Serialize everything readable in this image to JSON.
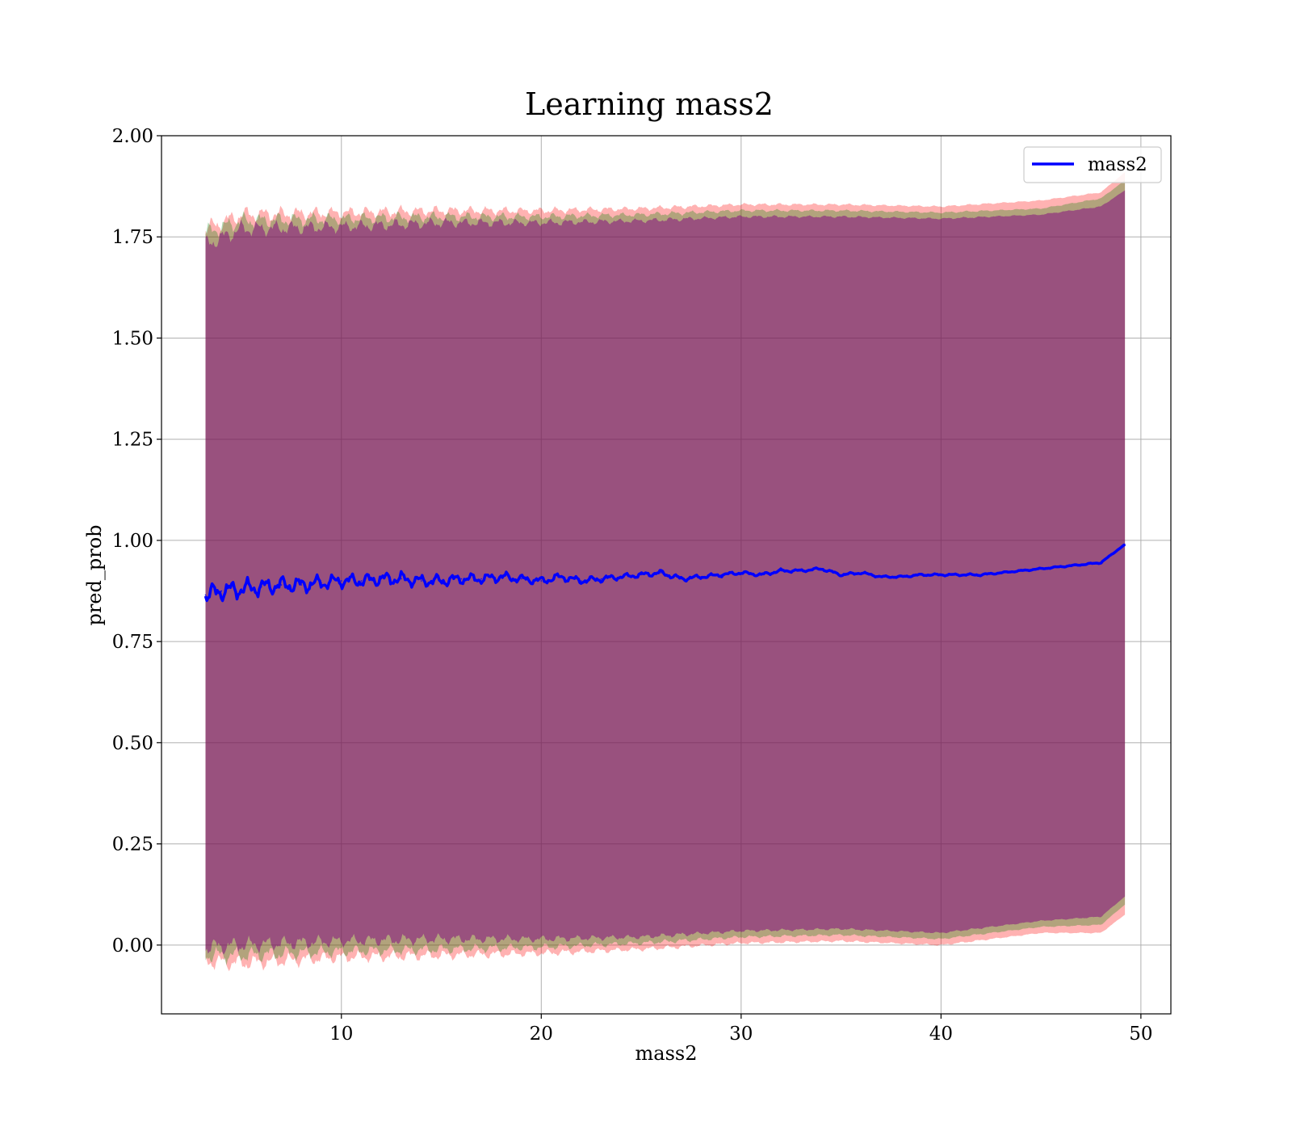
{
  "chart_data": {
    "type": "line",
    "title": "Learning mass2",
    "xlabel": "mass2",
    "ylabel": "pred_prob",
    "xlim": [
      1,
      51.5
    ],
    "ylim": [
      -0.17,
      2.0
    ],
    "xticks": [
      10,
      20,
      30,
      40,
      50
    ],
    "xtick_labels": [
      "10",
      "20",
      "30",
      "40",
      "50"
    ],
    "yticks": [
      0.0,
      0.25,
      0.5,
      0.75,
      1.0,
      1.25,
      1.5,
      1.75,
      2.0
    ],
    "ytick_labels": [
      "0.00",
      "0.25",
      "0.50",
      "0.75",
      "1.00",
      "1.25",
      "1.50",
      "1.75",
      "2.00"
    ],
    "grid": true,
    "legend_position": "top-right",
    "series": [
      {
        "name": "mass2",
        "color": "#0000ff",
        "x": [
          3.2,
          4.0,
          5.0,
          6.0,
          7.0,
          8.0,
          9.0,
          10.0,
          11.0,
          12.0,
          13.0,
          14.0,
          15.0,
          16.0,
          17.0,
          18.0,
          19.0,
          20.0,
          21.0,
          22.0,
          23.0,
          24.0,
          25.0,
          26.0,
          27.0,
          28.0,
          29.0,
          30.0,
          31.0,
          32.0,
          33.0,
          34.0,
          35.0,
          36.0,
          37.0,
          38.0,
          39.0,
          40.0,
          41.0,
          42.0,
          43.0,
          44.0,
          45.0,
          46.0,
          47.0,
          48.0,
          49.2
        ],
        "y": [
          0.865,
          0.875,
          0.88,
          0.885,
          0.89,
          0.89,
          0.895,
          0.9,
          0.9,
          0.905,
          0.905,
          0.9,
          0.9,
          0.905,
          0.905,
          0.91,
          0.905,
          0.9,
          0.91,
          0.9,
          0.905,
          0.91,
          0.915,
          0.92,
          0.905,
          0.91,
          0.915,
          0.92,
          0.915,
          0.925,
          0.925,
          0.93,
          0.915,
          0.92,
          0.91,
          0.91,
          0.915,
          0.915,
          0.915,
          0.915,
          0.92,
          0.925,
          0.93,
          0.935,
          0.94,
          0.945,
          0.99
        ],
        "noise": [
          0.03,
          0.028,
          0.028,
          0.026,
          0.025,
          0.024,
          0.022,
          0.02,
          0.02,
          0.02,
          0.02,
          0.018,
          0.018,
          0.016,
          0.015,
          0.015,
          0.012,
          0.012,
          0.012,
          0.01,
          0.01,
          0.008,
          0.008,
          0.008,
          0.008,
          0.006,
          0.006,
          0.005,
          0.005,
          0.005,
          0.004,
          0.004,
          0.004,
          0.004,
          0.003,
          0.003,
          0.003,
          0.003,
          0.003,
          0.003,
          0.002,
          0.002,
          0.002,
          0.002,
          0.002,
          0.002,
          0.0
        ]
      }
    ],
    "bands": [
      {
        "color": "#ff0000",
        "opacity": 0.3,
        "x": [
          3.2,
          5.0,
          10.0,
          15.0,
          20.0,
          25.0,
          30.0,
          35.0,
          40.0,
          45.0,
          48.0,
          49.2
        ],
        "upper": [
          1.77,
          1.805,
          1.81,
          1.815,
          1.815,
          1.82,
          1.83,
          1.83,
          1.825,
          1.84,
          1.86,
          1.91
        ],
        "lower": [
          -0.04,
          -0.045,
          -0.03,
          -0.025,
          -0.02,
          -0.01,
          0.005,
          0.01,
          0.0,
          0.03,
          0.03,
          0.075
        ]
      },
      {
        "color": "#008000",
        "opacity": 0.3,
        "x": [
          3.2,
          5.0,
          10.0,
          15.0,
          20.0,
          25.0,
          30.0,
          35.0,
          40.0,
          45.0,
          48.0,
          49.2
        ],
        "upper": [
          1.76,
          1.79,
          1.795,
          1.8,
          1.8,
          1.805,
          1.815,
          1.815,
          1.81,
          1.82,
          1.845,
          1.89
        ],
        "lower": [
          -0.025,
          -0.025,
          -0.015,
          -0.01,
          -0.005,
          0.005,
          0.02,
          0.025,
          0.015,
          0.045,
          0.05,
          0.1
        ]
      },
      {
        "color": "#800080",
        "opacity": 0.5,
        "x": [
          3.2,
          5.0,
          10.0,
          15.0,
          20.0,
          25.0,
          30.0,
          35.0,
          40.0,
          45.0,
          48.0,
          49.2
        ],
        "upper": [
          1.73,
          1.77,
          1.775,
          1.785,
          1.785,
          1.79,
          1.8,
          1.8,
          1.795,
          1.805,
          1.825,
          1.865
        ],
        "lower": [
          -0.005,
          0.0,
          0.01,
          0.015,
          0.015,
          0.02,
          0.035,
          0.04,
          0.03,
          0.06,
          0.07,
          0.12
        ]
      }
    ]
  }
}
